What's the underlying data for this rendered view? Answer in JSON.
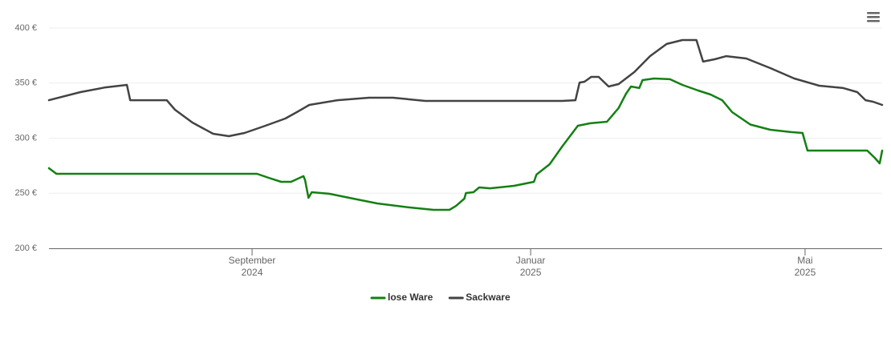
{
  "chart_data": {
    "type": "line",
    "xlim": [
      2024.419,
      2025.424
    ],
    "xticks": [
      {
        "value": 2024.664,
        "label": "September 2024"
      },
      {
        "value": 2025.0,
        "label": "Januar 2025"
      },
      {
        "value": 2025.331,
        "label": "Mai 2025"
      }
    ],
    "ylim": [
      200,
      400
    ],
    "yticks": [
      {
        "value": 200,
        "label": "200 €"
      },
      {
        "value": 250,
        "label": "250 €"
      },
      {
        "value": 300,
        "label": "300 €"
      },
      {
        "value": 350,
        "label": "350 €"
      },
      {
        "value": 400,
        "label": "400 €"
      }
    ],
    "grid": true,
    "legend": "bottom",
    "series": [
      {
        "name": "lose Ware",
        "color": "#138013",
        "x": [
          2024.419,
          2024.428,
          2024.505,
          2024.67,
          2024.684,
          2024.699,
          2024.711,
          2024.726,
          2024.728,
          2024.732,
          2024.736,
          2024.757,
          2024.786,
          2024.815,
          2024.854,
          2024.883,
          2024.902,
          2024.91,
          2024.92,
          2024.922,
          2024.931,
          2024.938,
          2024.951,
          2024.98,
          2025.004,
          2025.007,
          2025.023,
          2025.038,
          2025.057,
          2025.072,
          2025.092,
          2025.106,
          2025.115,
          2025.121,
          2025.131,
          2025.135,
          2025.149,
          2025.168,
          2025.183,
          2025.202,
          2025.217,
          2025.231,
          2025.243,
          2025.265,
          2025.289,
          2025.314,
          2025.328,
          2025.334,
          2025.406,
          2025.415,
          2025.421,
          2025.424
        ],
        "values": [
          272.7,
          267.6,
          267.6,
          267.6,
          264,
          260.4,
          260.4,
          265.5,
          261.8,
          245.8,
          250.9,
          249.5,
          245.1,
          240.7,
          237.1,
          234.9,
          234.9,
          238.5,
          245.1,
          250.2,
          250.9,
          255.3,
          254.5,
          256.7,
          260.4,
          266.9,
          276.4,
          292.4,
          311.3,
          313.5,
          314.9,
          327.3,
          340.4,
          346.9,
          345.5,
          352.7,
          354.2,
          353.5,
          348.4,
          343.3,
          339.6,
          334.5,
          323.6,
          312.4,
          307.6,
          305.5,
          304.7,
          288.7,
          288.7,
          282.2,
          277.1,
          288.7
        ]
      },
      {
        "name": "Sackware",
        "color": "#434343",
        "x": [
          2024.419,
          2024.457,
          2024.486,
          2024.513,
          2024.517,
          2024.561,
          2024.571,
          2024.592,
          2024.617,
          2024.636,
          2024.655,
          2024.68,
          2024.704,
          2024.718,
          2024.733,
          2024.767,
          2024.805,
          2024.834,
          2024.873,
          2024.941,
          2025.038,
          2025.054,
          2025.059,
          2025.065,
          2025.073,
          2025.082,
          2025.094,
          2025.106,
          2025.125,
          2025.144,
          2025.164,
          2025.183,
          2025.2,
          2025.208,
          2025.222,
          2025.236,
          2025.26,
          2025.289,
          2025.318,
          2025.348,
          2025.377,
          2025.394,
          2025.404,
          2025.413,
          2025.424
        ],
        "values": [
          334.5,
          341.8,
          346,
          348.4,
          334.5,
          334.5,
          325.8,
          314.2,
          304,
          301.8,
          304.7,
          311.3,
          317.8,
          323.6,
          330.2,
          334.5,
          336.7,
          336.7,
          333.8,
          333.8,
          333.8,
          334.5,
          350.5,
          351.3,
          355.6,
          355.6,
          346.9,
          349.1,
          360,
          374.5,
          385.5,
          389.1,
          389.1,
          369.5,
          371.6,
          374.5,
          372.4,
          363.6,
          354.2,
          347.6,
          345.5,
          341.8,
          334.5,
          333.1,
          330.2
        ]
      }
    ]
  }
}
